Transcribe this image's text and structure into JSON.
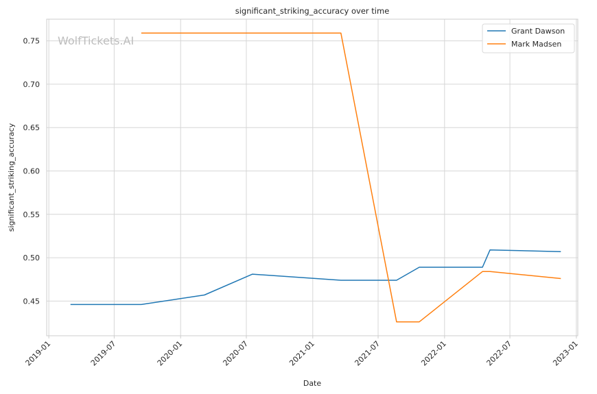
{
  "chart_data": {
    "type": "line",
    "title": "significant_striking_accuracy over time",
    "xlabel": "Date",
    "ylabel": "significant_striking_accuracy",
    "watermark": "WolfTickets.AI",
    "grid": true,
    "legend_position": "top-right",
    "x_ticks": [
      "2019-01",
      "2019-07",
      "2020-01",
      "2020-07",
      "2021-01",
      "2021-07",
      "2022-01",
      "2022-07",
      "2023-01"
    ],
    "y_ticks": [
      "0.45",
      "0.50",
      "0.55",
      "0.60",
      "0.65",
      "0.70",
      "0.75"
    ],
    "xlim": [
      "2018-12-26",
      "2023-01-05"
    ],
    "ylim": [
      0.41,
      0.775
    ],
    "series": [
      {
        "name": "Grant Dawson",
        "color": "#1f77b4",
        "points": [
          {
            "x": "2019-03-02",
            "y": 0.446
          },
          {
            "x": "2019-09-14",
            "y": 0.446
          },
          {
            "x": "2020-03-07",
            "y": 0.457
          },
          {
            "x": "2020-07-18",
            "y": 0.481
          },
          {
            "x": "2021-03-20",
            "y": 0.474
          },
          {
            "x": "2021-08-21",
            "y": 0.474
          },
          {
            "x": "2021-10-23",
            "y": 0.489
          },
          {
            "x": "2022-04-16",
            "y": 0.489
          },
          {
            "x": "2022-05-07",
            "y": 0.509
          },
          {
            "x": "2022-11-19",
            "y": 0.507
          }
        ]
      },
      {
        "name": "Mark Madsen",
        "color": "#ff7f0e",
        "points": [
          {
            "x": "2019-09-14",
            "y": 0.759
          },
          {
            "x": "2021-03-20",
            "y": 0.759
          },
          {
            "x": "2021-08-21",
            "y": 0.426
          },
          {
            "x": "2021-10-23",
            "y": 0.426
          },
          {
            "x": "2022-04-16",
            "y": 0.484
          },
          {
            "x": "2022-05-07",
            "y": 0.484
          },
          {
            "x": "2022-11-19",
            "y": 0.476
          }
        ]
      }
    ]
  }
}
